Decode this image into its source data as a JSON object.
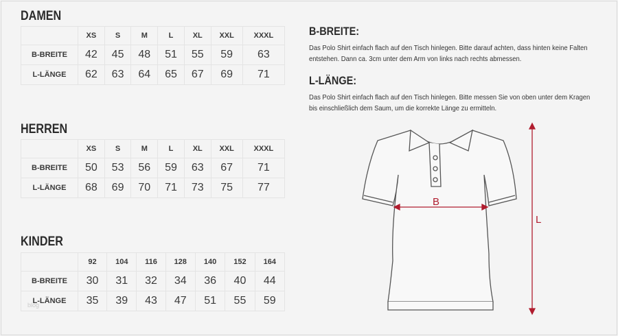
{
  "tables": [
    {
      "title": "DAMEN",
      "sizes": [
        "XS",
        "S",
        "M",
        "L",
        "XL",
        "XXL",
        "XXXL"
      ],
      "rows": [
        {
          "label": "B-BREITE",
          "values": [
            "42",
            "45",
            "48",
            "51",
            "55",
            "59",
            "63"
          ]
        },
        {
          "label": "L-LÄNGE",
          "values": [
            "62",
            "63",
            "64",
            "65",
            "67",
            "69",
            "71"
          ]
        }
      ]
    },
    {
      "title": "HERREN",
      "sizes": [
        "XS",
        "S",
        "M",
        "L",
        "XL",
        "XXL",
        "XXXL"
      ],
      "rows": [
        {
          "label": "B-BREITE",
          "values": [
            "50",
            "53",
            "56",
            "59",
            "63",
            "67",
            "71"
          ]
        },
        {
          "label": "L-LÄNGE",
          "values": [
            "68",
            "69",
            "70",
            "71",
            "73",
            "75",
            "77"
          ]
        }
      ]
    },
    {
      "title": "KINDER",
      "sizes": [
        "92",
        "104",
        "116",
        "128",
        "140",
        "152",
        "164"
      ],
      "rows": [
        {
          "label": "B-BREITE",
          "values": [
            "30",
            "31",
            "32",
            "34",
            "36",
            "40",
            "44"
          ]
        },
        {
          "label": "L-LÄNGE",
          "values": [
            "35",
            "39",
            "43",
            "47",
            "51",
            "55",
            "59"
          ]
        }
      ]
    }
  ],
  "breite": {
    "title": "B-BREITE:",
    "text": "Das Polo Shirt einfach flach auf den Tisch hinlegen. Bitte darauf achten, dass hinten keine Falten entstehen. Dann ca. 3cm unter dem Arm von links nach rechts abmessen."
  },
  "laenge": {
    "title": "L-LÄNGE:",
    "text": "Das Polo Shirt einfach flach auf den Tisch hinlegen. Bitte messen Sie von oben unter dem Kragen bis einschließlich dem Saum, um die korrekte Länge zu ermitteln."
  },
  "diagram": {
    "b_label": "B",
    "l_label": "L",
    "arrow_color": "#b01c2e"
  },
  "watermark": "blog"
}
